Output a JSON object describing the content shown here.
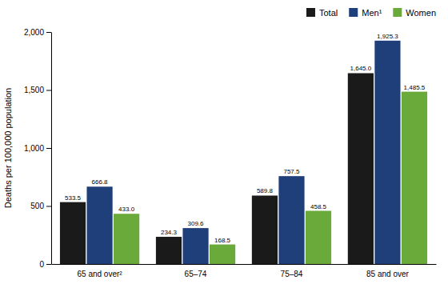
{
  "chart_data": {
    "type": "bar",
    "categories": [
      "65 and over²",
      "65–74",
      "75–84",
      "85 and over"
    ],
    "series": [
      {
        "name": "Total",
        "color": "#1a1a1a",
        "values": [
          533.5,
          234.3,
          589.8,
          1645.0
        ],
        "value_labels": [
          "533.5",
          "234.3",
          "589.8",
          "1,645.0"
        ]
      },
      {
        "name": "Men¹",
        "color": "#1f3f7a",
        "values": [
          666.8,
          309.6,
          757.5,
          1925.3
        ],
        "value_labels": [
          "666.8",
          "309.6",
          "757.5",
          "1,925.3"
        ]
      },
      {
        "name": "Women",
        "color": "#6aaa3a",
        "values": [
          433.0,
          168.5,
          458.5,
          1485.5
        ],
        "value_labels": [
          "433.0",
          "168.5",
          "458.5",
          "1,485.5"
        ]
      }
    ],
    "y_label": "Deaths per 100,000 population",
    "ylim": [
      0,
      2000
    ],
    "yticks": [
      0,
      500,
      {
        "value": 1000,
        "label": "1,000"
      },
      {
        "value": 1500,
        "label": "1,500"
      },
      {
        "value": 2000,
        "label": "2,000"
      }
    ],
    "data_labels": true,
    "grid": false,
    "legend": "upper right"
  }
}
